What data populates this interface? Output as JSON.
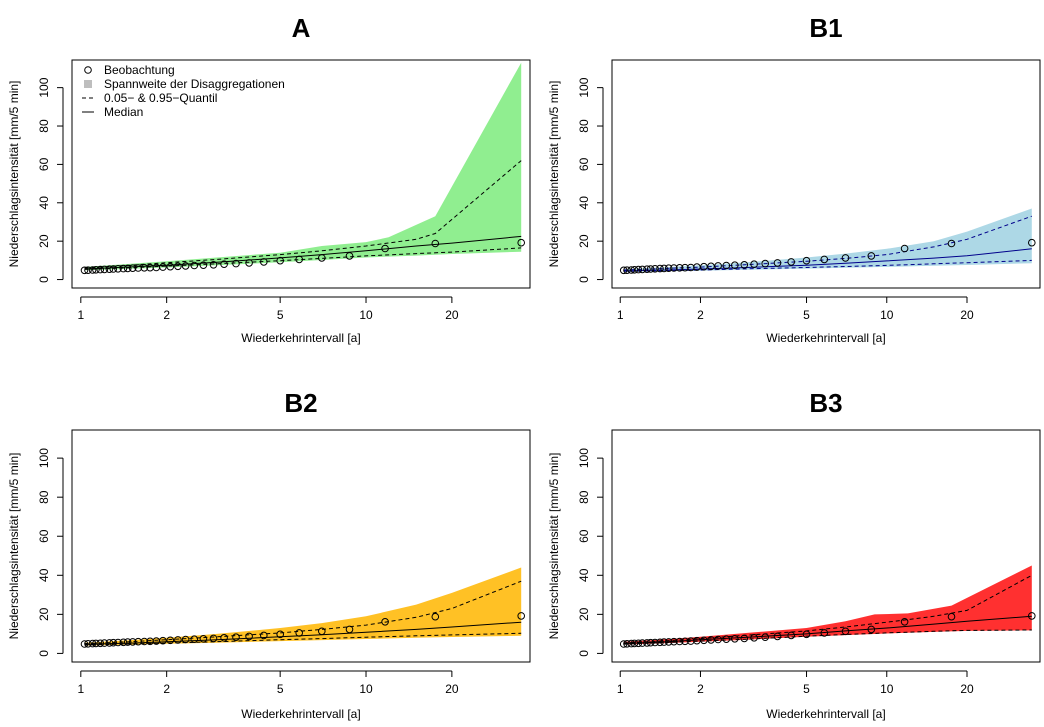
{
  "chart_data": [
    {
      "type": "line",
      "title": "A",
      "xlabel": "Wiederkehrintervall [a]",
      "ylabel": "Niederschlagsintensität [mm/5 min]",
      "x_scale": "log",
      "xlim": [
        1,
        35
      ],
      "ylim": [
        0,
        110
      ],
      "x_ticks": [
        "1",
        "2",
        "5",
        "10",
        "20"
      ],
      "y_ticks": [
        "0",
        "20",
        "40",
        "60",
        "80",
        "100"
      ],
      "band_color": "#90ee90",
      "line_color": "#000000",
      "legend": {
        "position": "top-left",
        "entries": [
          "Beobachtung",
          "Spannweite der Disaggregationen",
          "0.05− & 0.95−Quantil",
          "Median"
        ]
      },
      "observations": {
        "x": [
          1.03,
          1.06,
          1.1,
          1.13,
          1.17,
          1.21,
          1.26,
          1.3,
          1.35,
          1.41,
          1.46,
          1.52,
          1.59,
          1.67,
          1.75,
          1.84,
          1.94,
          2.06,
          2.19,
          2.33,
          2.5,
          2.69,
          2.92,
          3.18,
          3.5,
          3.89,
          4.38,
          5.0,
          5.83,
          7.0,
          8.75,
          11.67,
          17.5,
          35
        ],
        "y": [
          4.8,
          4.9,
          5.0,
          5.1,
          5.2,
          5.3,
          5.4,
          5.5,
          5.6,
          5.7,
          5.8,
          5.9,
          6.0,
          6.1,
          6.2,
          6.3,
          6.5,
          6.7,
          6.9,
          7.1,
          7.3,
          7.5,
          7.7,
          8.0,
          8.3,
          8.7,
          9.2,
          9.8,
          10.5,
          11.3,
          12.3,
          16.2,
          18.8,
          19.2
        ]
      },
      "median": {
        "x": [
          1.03,
          1.5,
          2,
          3,
          5,
          7,
          10,
          15,
          20,
          35
        ],
        "y": [
          5.5,
          6.6,
          7.5,
          9,
          11.3,
          13,
          15,
          17.5,
          19,
          22.5
        ]
      },
      "quantile_05": {
        "x": [
          1.03,
          1.5,
          2,
          3,
          5,
          7,
          10,
          15,
          20,
          35
        ],
        "y": [
          5.3,
          6.2,
          7,
          8.2,
          9.8,
          11,
          12.3,
          13.5,
          14.3,
          16.5
        ]
      },
      "quantile_95": {
        "x": [
          1.03,
          1.5,
          2,
          3,
          5,
          7,
          10,
          15,
          17.5,
          35
        ],
        "y": [
          6,
          7.5,
          8.8,
          10.5,
          13,
          15,
          17.5,
          21,
          24,
          62
        ]
      },
      "range_min": {
        "x": [
          1.03,
          1.5,
          2,
          3,
          5,
          7,
          10,
          15,
          20,
          35
        ],
        "y": [
          4.8,
          5.6,
          6.3,
          7.5,
          9,
          10.2,
          11.5,
          12.5,
          13.3,
          14.5
        ]
      },
      "range_max": {
        "x": [
          1.03,
          1.5,
          2,
          3,
          5,
          7,
          10,
          12,
          17.5,
          35
        ],
        "y": [
          6.6,
          8.2,
          9.5,
          11.5,
          14,
          17.5,
          19.5,
          22,
          33,
          113
        ]
      }
    },
    {
      "type": "line",
      "title": "B1",
      "xlabel": "Wiederkehrintervall [a]",
      "ylabel": "Niederschlagsintensität [mm/5 min]",
      "x_scale": "log",
      "xlim": [
        1,
        35
      ],
      "ylim": [
        0,
        110
      ],
      "x_ticks": [
        "1",
        "2",
        "5",
        "10",
        "20"
      ],
      "y_ticks": [
        "0",
        "20",
        "40",
        "60",
        "80",
        "100"
      ],
      "band_color": "#add8e6",
      "line_color": "#00008b",
      "observations": {
        "x": [
          1.03,
          1.06,
          1.1,
          1.13,
          1.17,
          1.21,
          1.26,
          1.3,
          1.35,
          1.41,
          1.46,
          1.52,
          1.59,
          1.67,
          1.75,
          1.84,
          1.94,
          2.06,
          2.19,
          2.33,
          2.5,
          2.69,
          2.92,
          3.18,
          3.5,
          3.89,
          4.38,
          5.0,
          5.83,
          7.0,
          8.75,
          11.67,
          17.5,
          35
        ],
        "y": [
          4.8,
          4.9,
          5.0,
          5.1,
          5.2,
          5.3,
          5.4,
          5.5,
          5.6,
          5.7,
          5.8,
          5.9,
          6.0,
          6.1,
          6.2,
          6.3,
          6.5,
          6.7,
          6.9,
          7.1,
          7.3,
          7.5,
          7.7,
          8.0,
          8.3,
          8.7,
          9.2,
          9.8,
          10.5,
          11.3,
          12.3,
          16.2,
          18.8,
          19.2
        ]
      },
      "median": {
        "x": [
          1.03,
          1.5,
          2,
          3,
          5,
          7,
          10,
          15,
          20,
          35
        ],
        "y": [
          4.5,
          5,
          5.5,
          6.3,
          7.5,
          8.5,
          9.7,
          11.2,
          12.4,
          16
        ]
      },
      "quantile_05": {
        "x": [
          1.03,
          1.5,
          2,
          3,
          5,
          7,
          10,
          15,
          20,
          35
        ],
        "y": [
          4.3,
          4.6,
          5,
          5.6,
          6.3,
          6.8,
          7.4,
          8.2,
          8.8,
          10
        ]
      },
      "quantile_95": {
        "x": [
          1.03,
          1.5,
          2,
          3,
          5,
          7,
          10,
          15,
          20,
          35
        ],
        "y": [
          5,
          5.8,
          6.5,
          7.8,
          9.5,
          11,
          13,
          17,
          21,
          33
        ]
      },
      "range_min": {
        "x": [
          1.03,
          1.5,
          2,
          3,
          5,
          7,
          10,
          15,
          20,
          35
        ],
        "y": [
          4,
          4.3,
          4.6,
          5.1,
          5.7,
          6.1,
          6.6,
          7.2,
          7.6,
          8.5
        ]
      },
      "range_max": {
        "x": [
          1.03,
          1.5,
          2,
          3,
          5,
          7,
          10,
          15,
          20,
          35
        ],
        "y": [
          5.5,
          6.5,
          7.5,
          9,
          11.5,
          13.5,
          16,
          20,
          25,
          37
        ]
      }
    },
    {
      "type": "line",
      "title": "B2",
      "xlabel": "Wiederkehrintervall [a]",
      "ylabel": "Niederschlagsintensität [mm/5 min]",
      "x_scale": "log",
      "xlim": [
        1,
        35
      ],
      "ylim": [
        0,
        110
      ],
      "x_ticks": [
        "1",
        "2",
        "5",
        "10",
        "20"
      ],
      "y_ticks": [
        "0",
        "20",
        "40",
        "60",
        "80",
        "100"
      ],
      "band_color": "#ffc125",
      "line_color": "#000000",
      "observations": {
        "x": [
          1.03,
          1.06,
          1.1,
          1.13,
          1.17,
          1.21,
          1.26,
          1.3,
          1.35,
          1.41,
          1.46,
          1.52,
          1.59,
          1.67,
          1.75,
          1.84,
          1.94,
          2.06,
          2.19,
          2.33,
          2.5,
          2.69,
          2.92,
          3.18,
          3.5,
          3.89,
          4.38,
          5.0,
          5.83,
          7.0,
          8.75,
          11.67,
          17.5,
          35
        ],
        "y": [
          4.8,
          4.9,
          5.0,
          5.1,
          5.2,
          5.3,
          5.4,
          5.5,
          5.6,
          5.7,
          5.8,
          5.9,
          6.0,
          6.1,
          6.2,
          6.3,
          6.5,
          6.7,
          6.9,
          7.1,
          7.3,
          7.5,
          7.7,
          8.0,
          8.3,
          8.7,
          9.2,
          9.8,
          10.5,
          11.3,
          12.3,
          16.2,
          18.8,
          19.2
        ]
      },
      "median": {
        "x": [
          1.03,
          1.5,
          2,
          3,
          5,
          7,
          10,
          15,
          20,
          35
        ],
        "y": [
          4.6,
          5.3,
          6,
          7,
          8.5,
          9.6,
          10.8,
          12.3,
          13.5,
          16
        ]
      },
      "quantile_05": {
        "x": [
          1.03,
          1.5,
          2,
          3,
          5,
          7,
          10,
          15,
          20,
          35
        ],
        "y": [
          4.3,
          4.8,
          5.3,
          6,
          7,
          7.6,
          8.3,
          9,
          9.5,
          10.3
        ]
      },
      "quantile_95": {
        "x": [
          1.03,
          1.5,
          2,
          3,
          5,
          7,
          10,
          15,
          20,
          35
        ],
        "y": [
          5,
          6,
          7,
          8.5,
          10.5,
          12.3,
          14.5,
          18.5,
          23,
          37
        ]
      },
      "range_min": {
        "x": [
          1.03,
          1.5,
          2,
          3,
          5,
          7,
          10,
          15,
          20,
          35
        ],
        "y": [
          4,
          4.5,
          4.9,
          5.5,
          6.3,
          6.8,
          7.4,
          8,
          8.4,
          9
        ]
      },
      "range_max": {
        "x": [
          1.03,
          1.5,
          2,
          3,
          5,
          7,
          10,
          15,
          20,
          35
        ],
        "y": [
          5.5,
          6.8,
          8,
          10,
          13,
          15.5,
          19,
          25,
          31,
          44
        ]
      }
    },
    {
      "type": "line",
      "title": "B3",
      "xlabel": "Wiederkehrintervall [a]",
      "ylabel": "Niederschlagsintensität [mm/5 min]",
      "x_scale": "log",
      "xlim": [
        1,
        35
      ],
      "ylim": [
        0,
        110
      ],
      "x_ticks": [
        "1",
        "2",
        "5",
        "10",
        "20"
      ],
      "y_ticks": [
        "0",
        "20",
        "40",
        "60",
        "80",
        "100"
      ],
      "band_color": "#ff3030",
      "line_color": "#000000",
      "observations": {
        "x": [
          1.03,
          1.06,
          1.1,
          1.13,
          1.17,
          1.21,
          1.26,
          1.3,
          1.35,
          1.41,
          1.46,
          1.52,
          1.59,
          1.67,
          1.75,
          1.84,
          1.94,
          2.06,
          2.19,
          2.33,
          2.5,
          2.69,
          2.92,
          3.18,
          3.5,
          3.89,
          4.38,
          5.0,
          5.83,
          7.0,
          8.75,
          11.67,
          17.5,
          35
        ],
        "y": [
          4.8,
          4.9,
          5.0,
          5.1,
          5.2,
          5.3,
          5.4,
          5.5,
          5.6,
          5.7,
          5.8,
          5.9,
          6.0,
          6.1,
          6.2,
          6.3,
          6.5,
          6.7,
          6.9,
          7.1,
          7.3,
          7.5,
          7.7,
          8.0,
          8.3,
          8.7,
          9.2,
          9.8,
          10.5,
          11.3,
          12.3,
          16.2,
          18.8,
          19.2
        ]
      },
      "median": {
        "x": [
          1.03,
          1.5,
          2,
          3,
          5,
          7,
          10,
          15,
          20,
          35
        ],
        "y": [
          5,
          6,
          7,
          8.3,
          10,
          11.5,
          13,
          15,
          16.5,
          19
        ]
      },
      "quantile_05": {
        "x": [
          1.03,
          1.5,
          2,
          3,
          5,
          7,
          10,
          15,
          20,
          35
        ],
        "y": [
          4.7,
          5.6,
          6.3,
          7.3,
          8.8,
          9.7,
          10.5,
          11.3,
          11.8,
          12
        ]
      },
      "quantile_95": {
        "x": [
          1.03,
          1.5,
          2,
          3,
          5,
          7,
          10,
          15,
          20,
          35
        ],
        "y": [
          5.4,
          6.5,
          7.6,
          9.3,
          11.5,
          13.5,
          16,
          19,
          22,
          40
        ]
      },
      "range_min": {
        "x": [
          1.03,
          1.5,
          2,
          3,
          5,
          7,
          10,
          15,
          20,
          35
        ],
        "y": [
          4.5,
          5.3,
          6,
          7,
          8.5,
          9.4,
          10.2,
          11,
          11.5,
          11.8
        ]
      },
      "range_max": {
        "x": [
          1.03,
          1.5,
          2,
          3,
          5,
          7,
          9,
          12,
          17.5,
          35
        ],
        "y": [
          6,
          7.2,
          8.5,
          10.5,
          13,
          16.5,
          20,
          20.5,
          24.5,
          45
        ]
      }
    }
  ]
}
